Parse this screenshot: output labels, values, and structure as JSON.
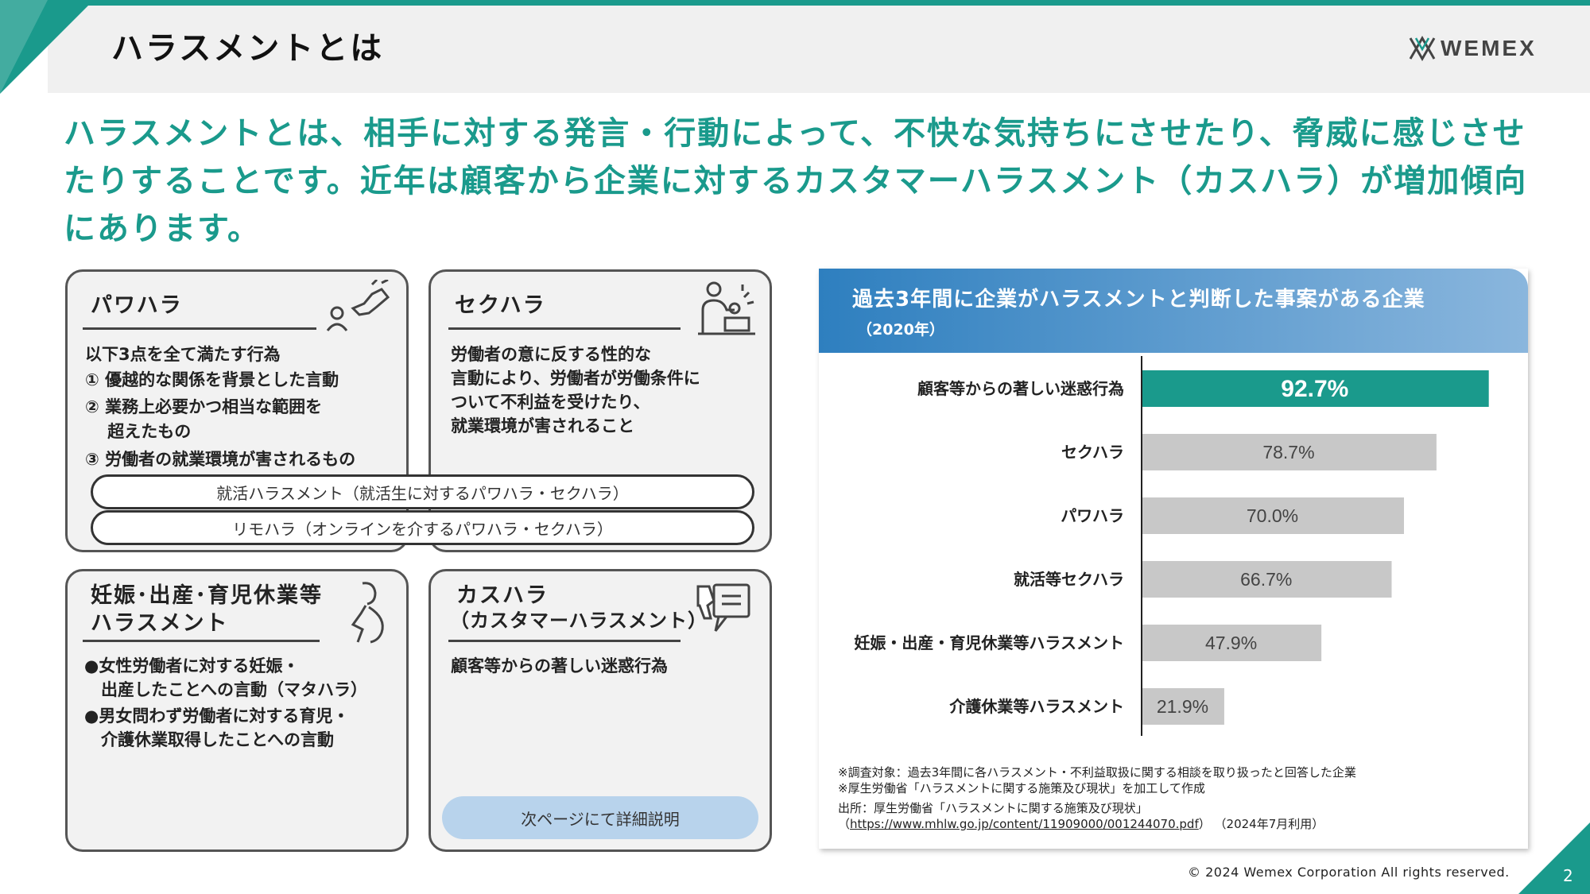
{
  "header": {
    "title": "ハラスメントとは",
    "logo_text": "WEMEX"
  },
  "lead": {
    "text": "ハラスメントとは、相手に対する発言・行動によって、不快な気持ちにさせたり、脅威に感じさせたりすることです。近年は顧客から企業に対するカスタマーハラスメント（カスハラ）が増加傾向にあります。"
  },
  "cards": {
    "power": {
      "title": "パワハラ",
      "lines": [
        "以下3点を全て満たす行為",
        "① 優越的な関係を背景とした言動",
        "② 業務上必要かつ相当な範囲を",
        "　 超えたもの",
        "③ 労働者の就業環境が害されるもの"
      ],
      "icon": "pointing-hand-icon"
    },
    "sexual": {
      "title": "セクハラ",
      "lines": [
        "労働者の意に反する性的な",
        "言動により、労働者が労働条件に",
        "ついて不利益を受けたり、",
        "就業環境が害されること"
      ],
      "icon": "office-worker-icon"
    },
    "pills": [
      "就活ハラスメント（就活生に対するパワハラ・セクハラ）",
      "リモハラ（オンラインを介するパワハラ・セクハラ）"
    ],
    "maternity": {
      "title_line1": "妊娠･出産･育児休業等",
      "title_line2": "ハラスメント",
      "lines": [
        "●女性労働者に対する妊娠・",
        "　出産したことへの言動（マタハラ）",
        "●男女問わず労働者に対する育児・",
        "　介護休業取得したことへの言動"
      ],
      "icon": "pregnant-woman-icon"
    },
    "customer": {
      "title_line1": "カスハラ",
      "title_line2": "（カスタマーハラスメント）",
      "lines": [
        "顧客等からの著しい迷惑行為"
      ],
      "button_label": "次ページにて詳細説明",
      "icon": "thumbs-down-icon"
    }
  },
  "chart_data": {
    "type": "bar",
    "orientation": "horizontal",
    "title": "過去3年間に企業がハラスメントと判断した事案がある企業",
    "subtitle": "（2020年）",
    "categories": [
      "顧客等からの著しい迷惑行為",
      "セクハラ",
      "パワハラ",
      "就活等セクハラ",
      "妊娠・出産・育児休業等ハラスメント",
      "介護休業等ハラスメント"
    ],
    "values": [
      92.7,
      78.7,
      70.0,
      66.7,
      47.9,
      21.9
    ],
    "value_labels": [
      "92.7%",
      "78.7%",
      "70.0%",
      "66.7%",
      "47.9%",
      "21.9%"
    ],
    "xlim": [
      0,
      100
    ],
    "highlight_index": 0,
    "colors": {
      "highlight": "#1a9a8c",
      "default": "#c8c8c8"
    },
    "notes": [
      "※調査対象：過去3年間に各ハラスメント・不利益取扱に関する相談を取り扱ったと回答した企業",
      "※厚生労働省「ハラスメントに関する施策及び現状」を加工して作成",
      "出所：厚生労働省「ハラスメントに関する施策及び現状」"
    ],
    "source_url": "https://www.mhlw.go.jp/content/11909000/001244070.pdf",
    "source_suffix": "（2024年7月利用）"
  },
  "footer": {
    "copyright": "© 2024 Wemex Corporation All rights reserved.",
    "page_number": "2"
  },
  "colors": {
    "accent": "#1a9a8c",
    "button": "#b8d3ec"
  }
}
